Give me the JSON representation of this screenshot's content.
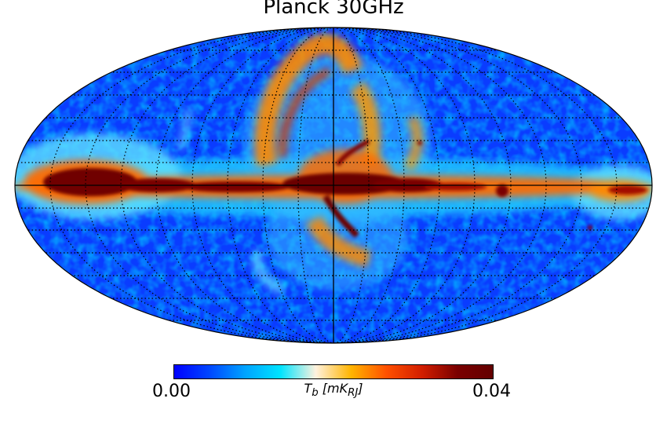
{
  "title": "Planck 30GHz",
  "colorbar": {
    "min_label": "0.00",
    "max_label": "0.04",
    "min": 0.0,
    "max": 0.04,
    "unit_symbol": "T",
    "unit_sub": "b",
    "unit_bracket_open": " [",
    "unit_main": "mK",
    "unit_main_sub": "RJ",
    "unit_bracket_close": "]",
    "colormap": "planck",
    "stops": [
      "#0000ff",
      "#0047ff",
      "#00a3ff",
      "#00e4ff",
      "#fff2de",
      "#ffb400",
      "#ff5000",
      "#d21e00",
      "#7a0000",
      "#640000"
    ]
  },
  "map": {
    "projection": "mollweide",
    "coordinate_system": "galactic",
    "graticule": true,
    "graticule_style": "dotted",
    "central_axes": true
  }
}
